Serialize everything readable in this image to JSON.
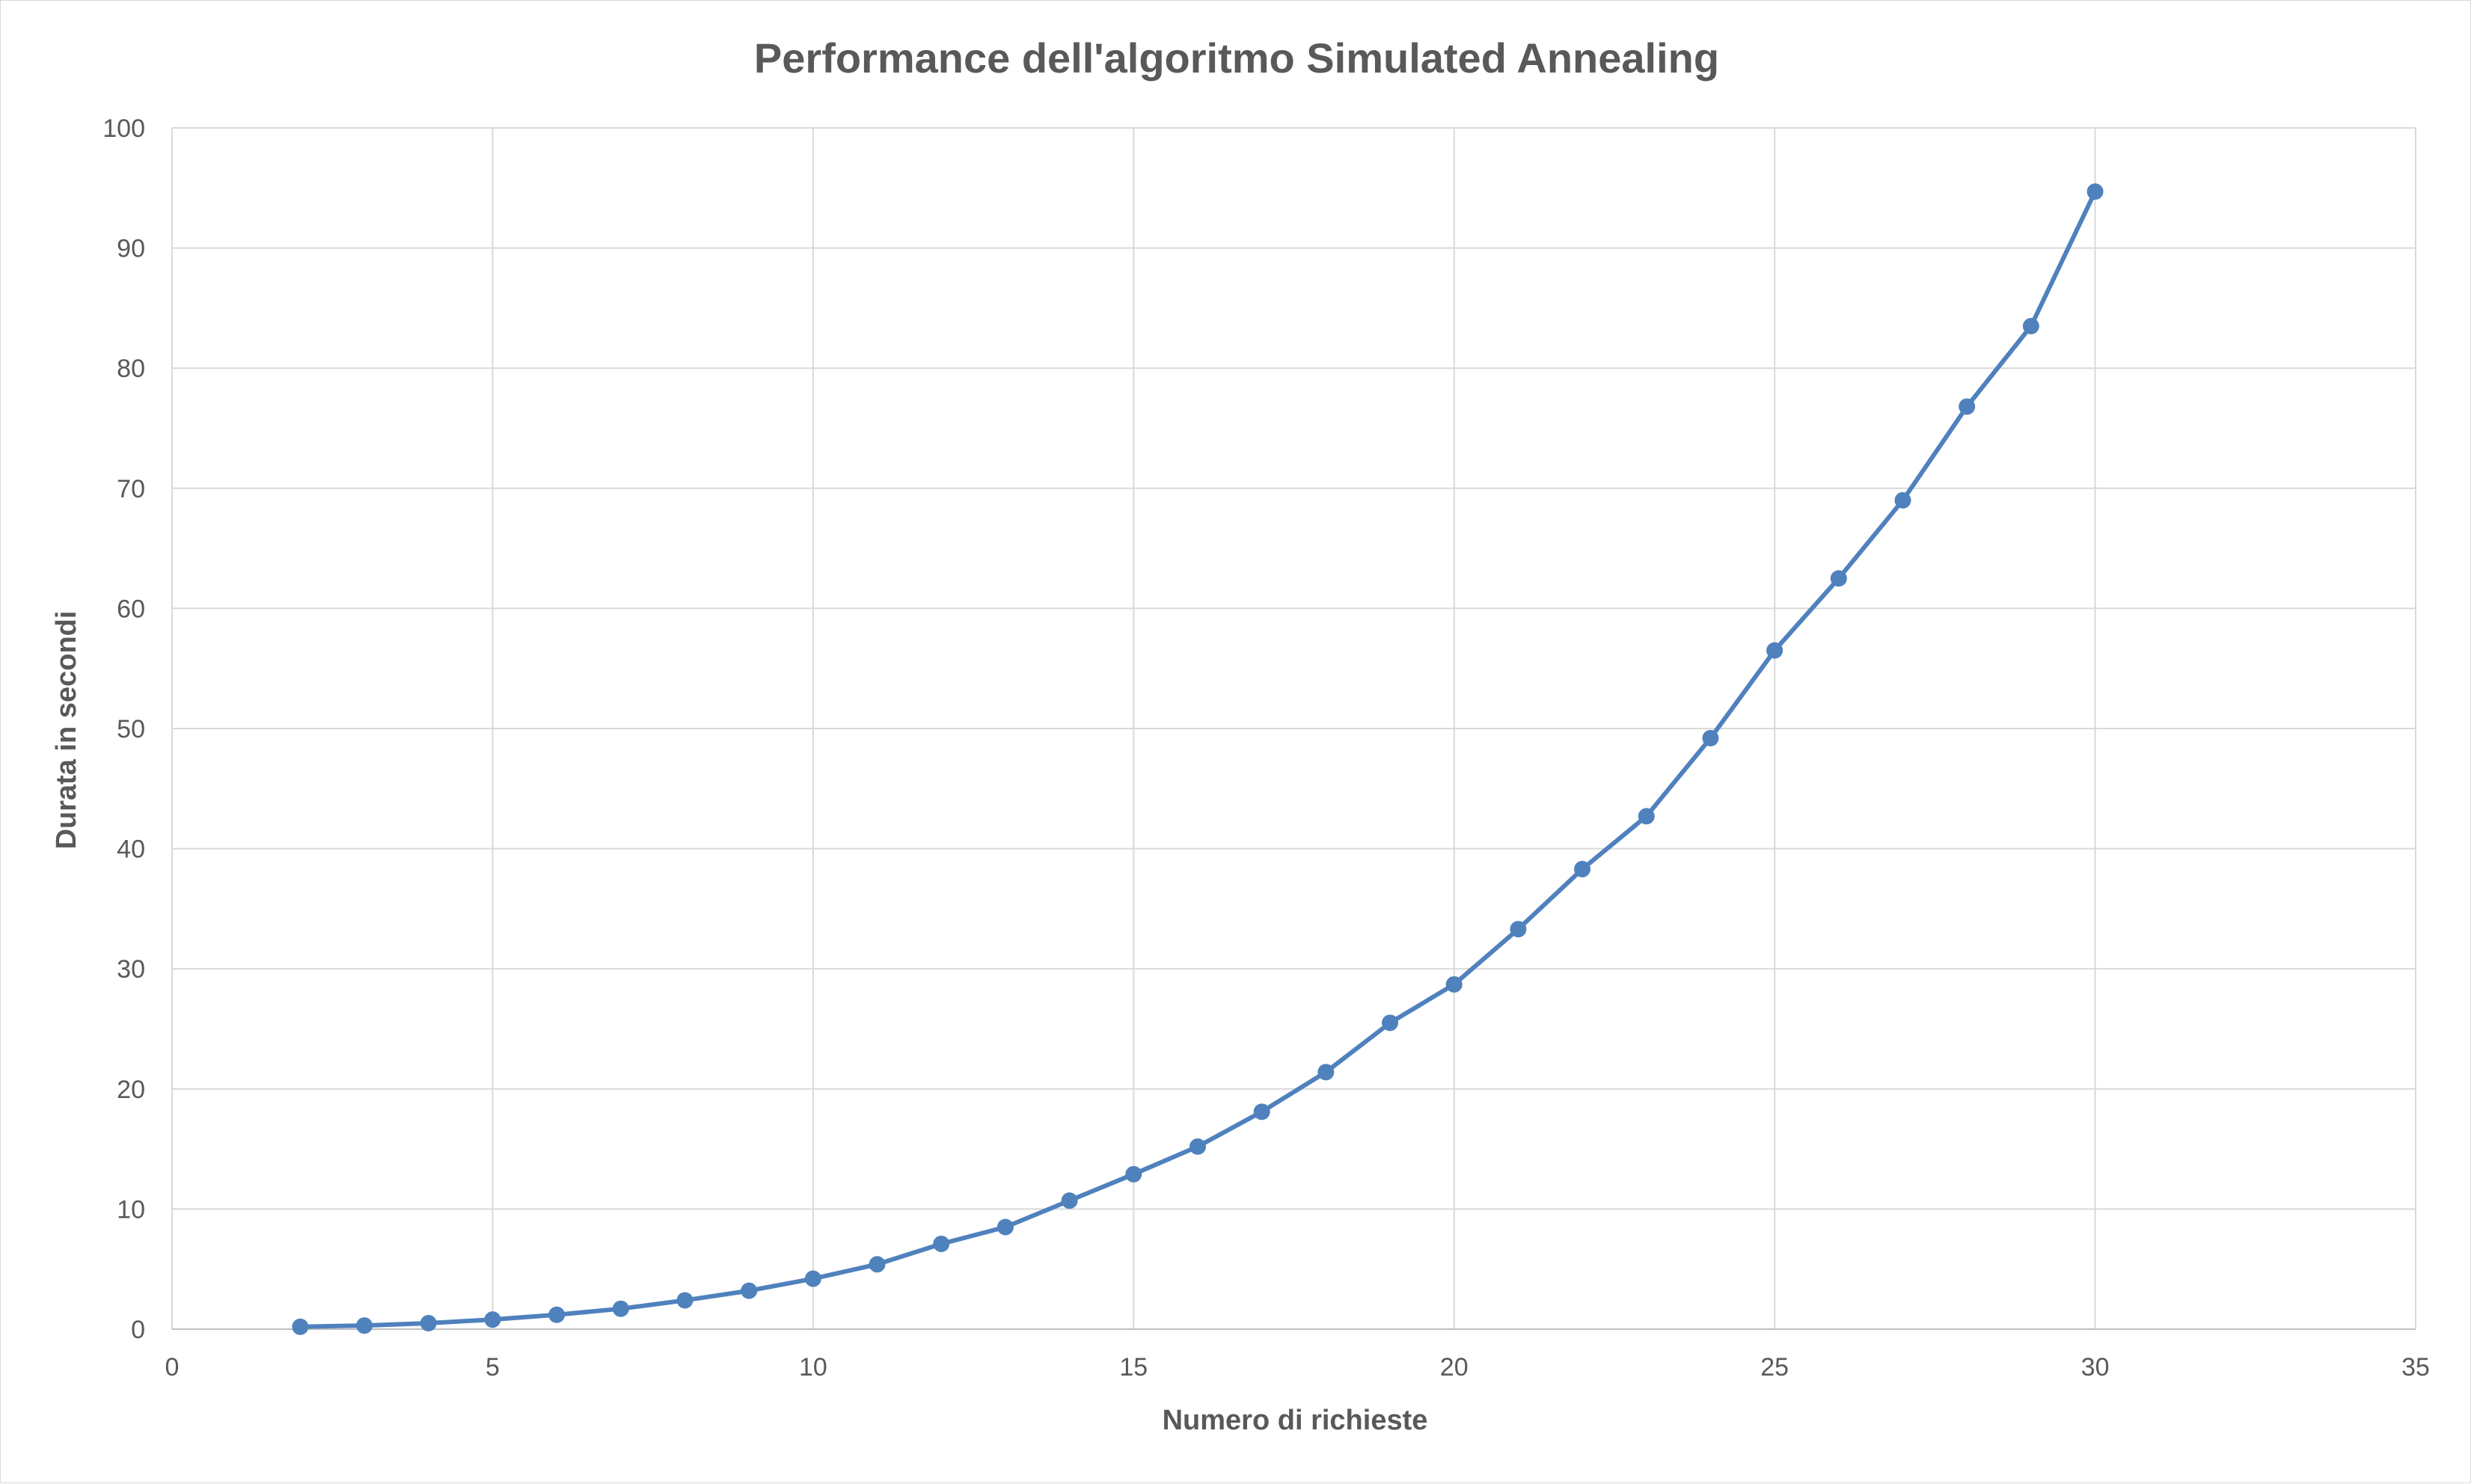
{
  "chart_data": {
    "type": "scatter",
    "title": "Performance dell'algoritmo Simulated Annealing",
    "xlabel": "Numero di richieste",
    "ylabel": "Durata in secondi",
    "xlim": [
      0,
      35
    ],
    "ylim": [
      0,
      100
    ],
    "xticks": [
      0,
      5,
      10,
      15,
      20,
      25,
      30,
      35
    ],
    "yticks": [
      0,
      10,
      20,
      30,
      40,
      50,
      60,
      70,
      80,
      90,
      100
    ],
    "grid": true,
    "legend": "none",
    "series": [
      {
        "color": "#4f81bd",
        "marker": "circle",
        "line": "straight",
        "x": [
          2,
          3,
          4,
          5,
          6,
          7,
          8,
          9,
          10,
          11,
          12,
          13,
          14,
          15,
          16,
          17,
          18,
          19,
          20,
          21,
          22,
          23,
          24,
          25,
          26,
          27,
          28,
          29,
          30
        ],
        "y": [
          0.2,
          0.3,
          0.5,
          0.8,
          1.2,
          1.7,
          2.4,
          3.2,
          4.2,
          5.4,
          7.1,
          8.5,
          10.7,
          12.9,
          15.2,
          18.1,
          21.4,
          25.5,
          28.7,
          33.3,
          38.3,
          42.7,
          49.2,
          56.5,
          62.5,
          69.0,
          76.8,
          83.5,
          94.7
        ]
      }
    ]
  }
}
